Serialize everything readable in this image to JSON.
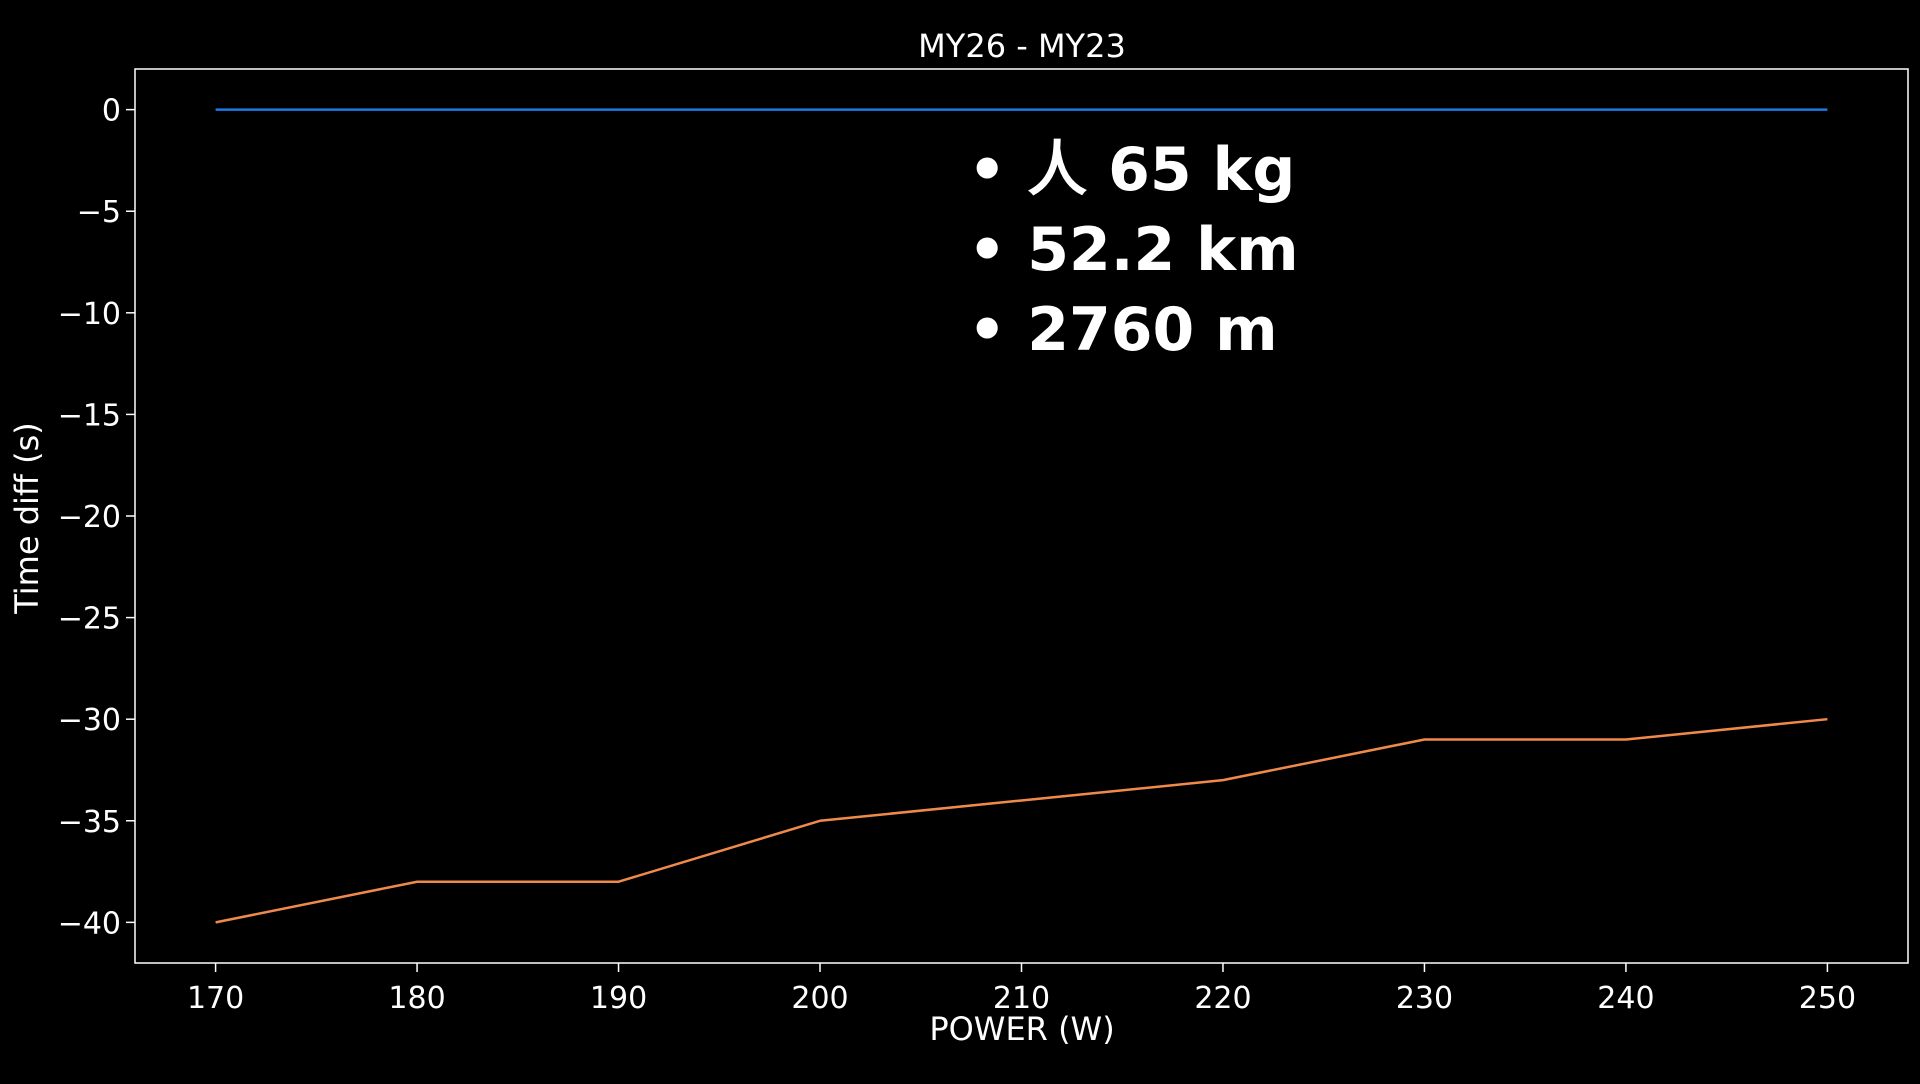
{
  "chart_data": {
    "type": "line",
    "title": "MY26 - MY23",
    "xlabel": "POWER (W)",
    "ylabel": "Time diff (s)",
    "x": [
      170,
      180,
      190,
      200,
      210,
      220,
      230,
      240,
      250
    ],
    "xlim": [
      166,
      254
    ],
    "ylim": [
      -42,
      2
    ],
    "xticks": [
      170,
      180,
      190,
      200,
      210,
      220,
      230,
      240,
      250
    ],
    "yticks": [
      0,
      -5,
      -10,
      -15,
      -20,
      -25,
      -30,
      -35,
      -40
    ],
    "ytick_labels": [
      "0",
      "−5",
      "−10",
      "−15",
      "−20",
      "−25",
      "−30",
      "−35",
      "−40"
    ],
    "grid": false,
    "background": "#000000",
    "axes_color": "#ffffff",
    "series": [
      {
        "color": "#1f77e4",
        "values": [
          0,
          0,
          0,
          0,
          0,
          0,
          0,
          0,
          0
        ]
      },
      {
        "color": "#f08a4b",
        "values": [
          -40,
          -38,
          -38,
          -35,
          -34,
          -33,
          -31,
          -31,
          -30
        ]
      }
    ],
    "annotations": [
      "• 人 65 kg",
      "• 52.2 km",
      "• 2760 m"
    ]
  }
}
